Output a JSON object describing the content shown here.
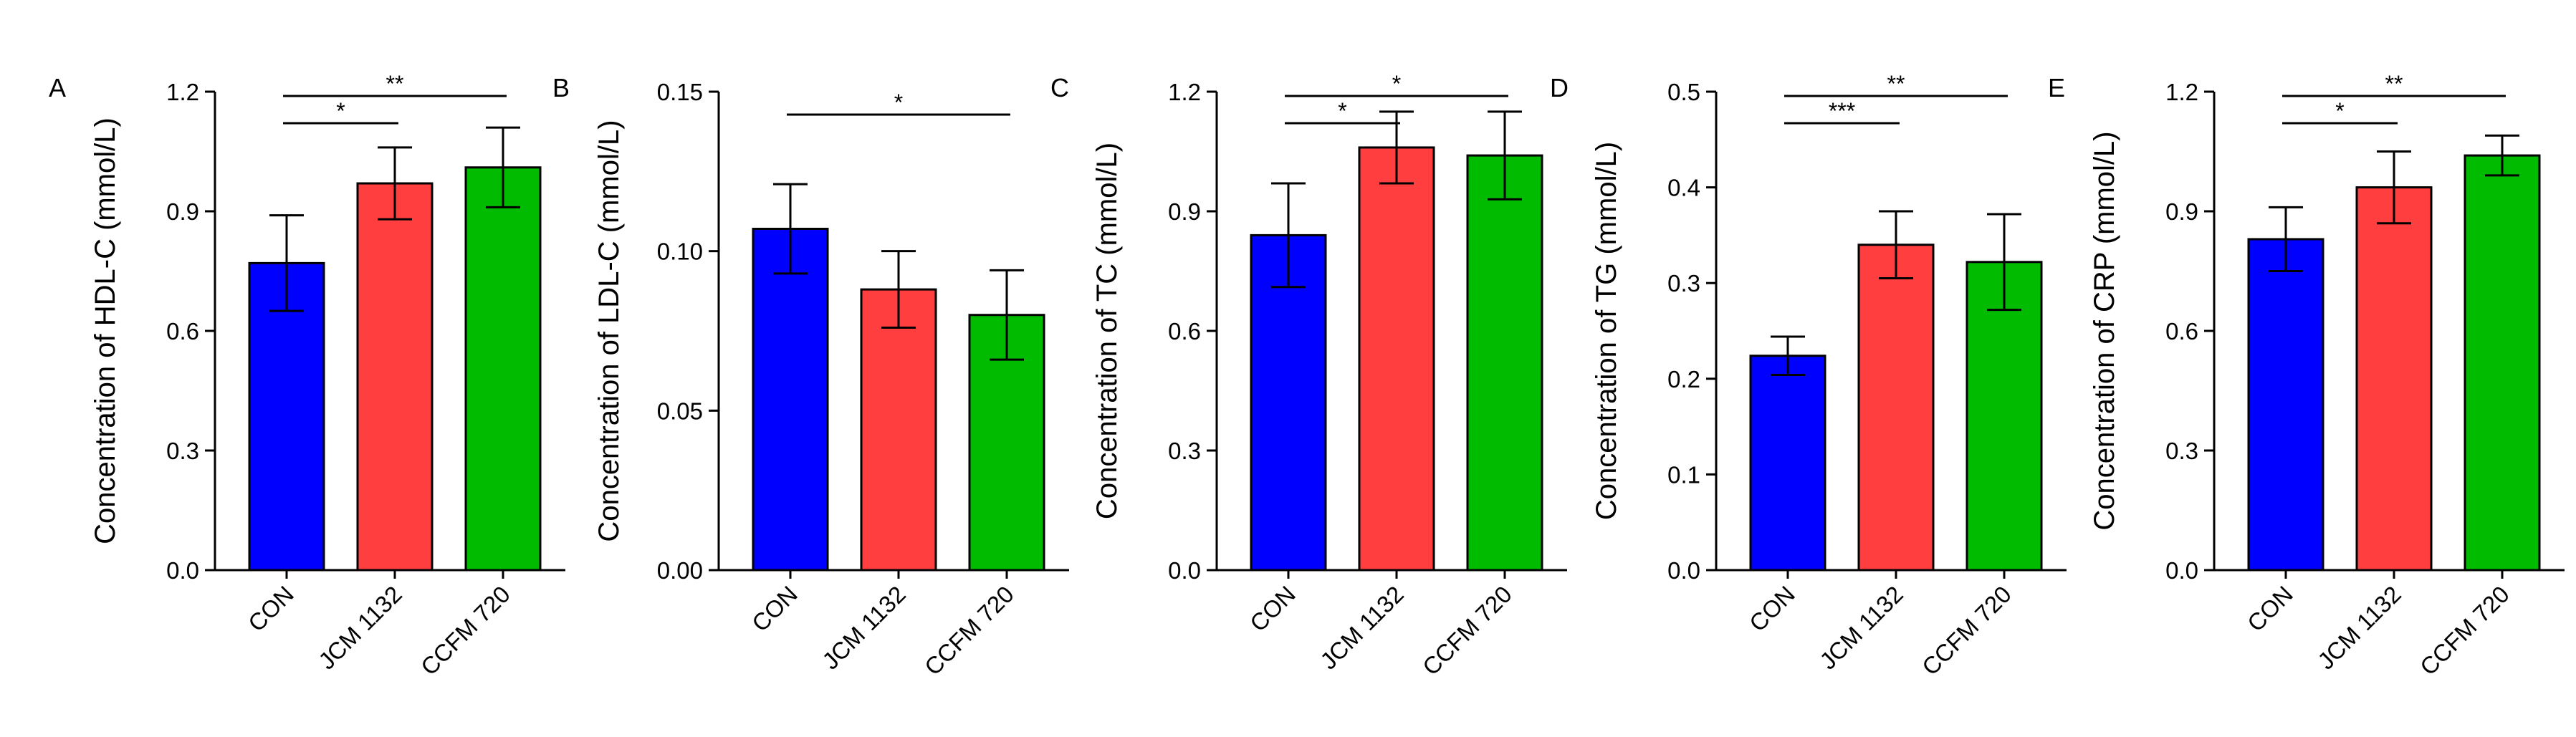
{
  "chart_data": [
    {
      "type": "bar",
      "panel_label": "A",
      "categories": [
        "CON",
        "JCM 1132",
        "CCFM 720"
      ],
      "values": [
        0.77,
        0.97,
        1.01
      ],
      "errors": [
        0.12,
        0.09,
        0.1
      ],
      "colors": [
        "#0000ff",
        "#ff3f3f",
        "#00bb00"
      ],
      "ylabel": "Concentration of HDL-C (mmol/L)",
      "ylim": [
        0,
        1.2
      ],
      "yticks": [
        "0.0",
        "0.3",
        "0.6",
        "0.9",
        "1.2"
      ],
      "significance": [
        {
          "from": 0,
          "to": 1,
          "label": "*"
        },
        {
          "from": 0,
          "to": 2,
          "label": "**"
        }
      ]
    },
    {
      "type": "bar",
      "panel_label": "B",
      "categories": [
        "CON",
        "JCM 1132",
        "CCFM 720"
      ],
      "values": [
        0.107,
        0.088,
        0.08
      ],
      "errors": [
        0.014,
        0.012,
        0.014
      ],
      "colors": [
        "#0000ff",
        "#ff3f3f",
        "#00bb00"
      ],
      "ylabel": "Concentration of LDL-C (mmol/L)",
      "ylim": [
        0,
        0.15
      ],
      "yticks": [
        "0.00",
        "0.05",
        "0.10",
        "0.15"
      ],
      "significance": [
        {
          "from": 0,
          "to": 2,
          "label": "*"
        }
      ]
    },
    {
      "type": "bar",
      "panel_label": "C",
      "categories": [
        "CON",
        "JCM 1132",
        "CCFM 720"
      ],
      "values": [
        0.84,
        1.06,
        1.04
      ],
      "errors": [
        0.13,
        0.09,
        0.11
      ],
      "colors": [
        "#0000ff",
        "#ff3f3f",
        "#00bb00"
      ],
      "ylabel": "Concentration of TC (mmol/L)",
      "ylim": [
        0,
        1.2
      ],
      "yticks": [
        "0.0",
        "0.3",
        "0.6",
        "0.9",
        "1.2"
      ],
      "significance": [
        {
          "from": 0,
          "to": 1,
          "label": "*"
        },
        {
          "from": 0,
          "to": 2,
          "label": "*"
        }
      ]
    },
    {
      "type": "bar",
      "panel_label": "D",
      "categories": [
        "CON",
        "JCM 1132",
        "CCFM 720"
      ],
      "values": [
        0.224,
        0.34,
        0.322
      ],
      "errors": [
        0.02,
        0.035,
        0.05
      ],
      "colors": [
        "#0000ff",
        "#ff3f3f",
        "#00bb00"
      ],
      "ylabel": "Concentration of TG (mmol/L)",
      "ylim": [
        0,
        0.5
      ],
      "yticks": [
        "0.0",
        "0.1",
        "0.2",
        "0.3",
        "0.4",
        "0.5"
      ],
      "significance": [
        {
          "from": 0,
          "to": 1,
          "label": "***"
        },
        {
          "from": 0,
          "to": 2,
          "label": "**"
        }
      ]
    },
    {
      "type": "bar",
      "panel_label": "E",
      "categories": [
        "CON",
        "JCM 1132",
        "CCFM 720"
      ],
      "values": [
        0.83,
        0.96,
        1.04
      ],
      "errors": [
        0.08,
        0.09,
        0.05
      ],
      "colors": [
        "#0000ff",
        "#ff3f3f",
        "#00bb00"
      ],
      "ylabel": "Concentration of CRP (mmol/L)",
      "ylim": [
        0,
        1.2
      ],
      "yticks": [
        "0.0",
        "0.3",
        "0.6",
        "0.9",
        "1.2"
      ],
      "significance": [
        {
          "from": 0,
          "to": 1,
          "label": "*"
        },
        {
          "from": 0,
          "to": 2,
          "label": "**"
        }
      ]
    }
  ]
}
